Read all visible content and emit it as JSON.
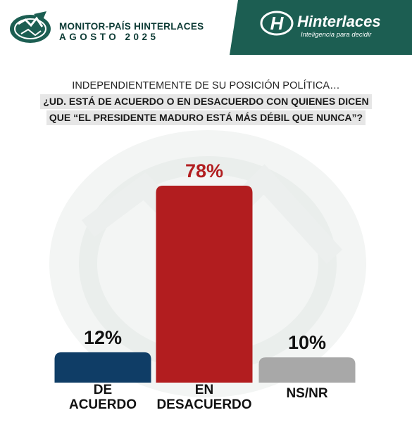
{
  "header": {
    "monitor_title": "MONITOR-PAÍS HINTERLACES",
    "monitor_date": "AGOSTO 2025",
    "brand_name": "Hinterlaces",
    "brand_tagline": "Inteligencia para decidir",
    "colors": {
      "header_green": "#1c5e52",
      "title_dark": "#0d3b35"
    }
  },
  "question": {
    "lead": "INDEPENDIENTEMENTE DE SU POSICIÓN POLÍTICA…",
    "line1": "¿UD. ESTÁ DE ACUERDO O EN DESACUERDO CON QUIENES DICEN",
    "line2": "QUE “EL PRESIDENTE MADURO ESTÁ MÁS DÉBIL QUE NUNCA”?"
  },
  "chart_data": {
    "type": "bar",
    "categories": [
      "DE ACUERDO",
      "EN DESACUERDO",
      "NS/NR"
    ],
    "category_lines": [
      [
        "DE",
        "ACUERDO"
      ],
      [
        "EN",
        "DESACUERDO"
      ],
      [
        "NS/NR"
      ]
    ],
    "values": [
      12,
      78,
      10
    ],
    "value_labels": [
      "12%",
      "78%",
      "10%"
    ],
    "colors": [
      "#0f3d66",
      "#b21d1f",
      "#a8a8a8"
    ],
    "label_colors": [
      "#111111",
      "#b21d1f",
      "#111111"
    ],
    "ylim": [
      0,
      78
    ],
    "grid": false,
    "legend": "none"
  }
}
